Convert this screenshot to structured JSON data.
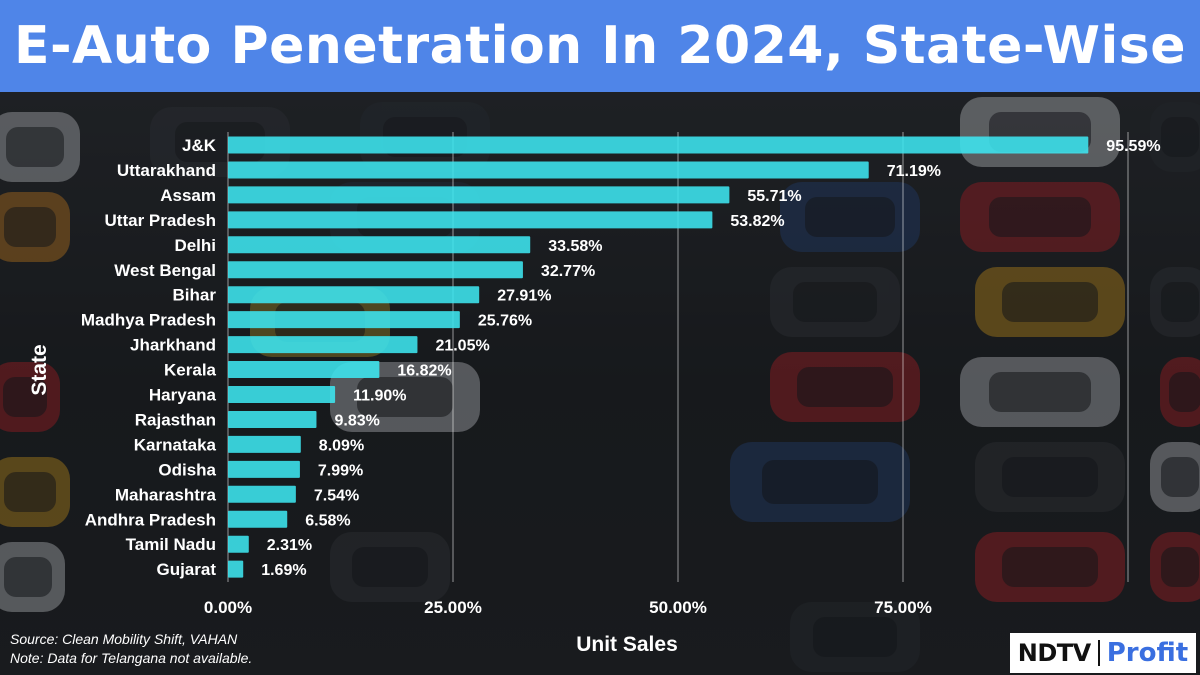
{
  "header": {
    "title": "E-Auto Penetration In 2024, State-Wise"
  },
  "chart_data": {
    "type": "bar",
    "orientation": "horizontal",
    "title": "E-Auto Penetration In 2024, State-Wise",
    "xlabel": "Unit Sales",
    "ylabel": "State",
    "xlim": [
      0,
      100
    ],
    "xticks": [
      0,
      25,
      50,
      75
    ],
    "xtick_labels": [
      "0.00%",
      "25.00%",
      "50.00%",
      "75.00%"
    ],
    "categories": [
      "J&K",
      "Uttarakhand",
      "Assam",
      "Uttar Pradesh",
      "Delhi",
      "West Bengal",
      "Bihar",
      "Madhya Pradesh",
      "Jharkhand",
      "Kerala",
      "Haryana",
      "Rajasthan",
      "Karnataka",
      "Odisha",
      "Maharashtra",
      "Andhra Pradesh",
      "Tamil Nadu",
      "Gujarat"
    ],
    "values": [
      95.59,
      71.19,
      55.71,
      53.82,
      33.58,
      32.77,
      27.91,
      25.76,
      21.05,
      16.82,
      11.9,
      9.83,
      8.09,
      7.99,
      7.54,
      6.58,
      2.31,
      1.69
    ],
    "value_labels": [
      "95.59%",
      "71.19%",
      "55.71%",
      "53.82%",
      "33.58%",
      "32.77%",
      "27.91%",
      "25.76%",
      "21.05%",
      "16.82%",
      "11.90%",
      "9.83%",
      "8.09%",
      "7.99%",
      "7.54%",
      "6.58%",
      "2.31%",
      "1.69%"
    ],
    "bar_color": "#3ee6f0",
    "grid": true
  },
  "footer": {
    "source": "Source: Clean Mobility Shift, VAHAN",
    "note": "Note: Data for Telangana not available."
  },
  "logo": {
    "brand": "NDTV",
    "sub": "Profit",
    "sub_color": "#3a6fe0"
  }
}
